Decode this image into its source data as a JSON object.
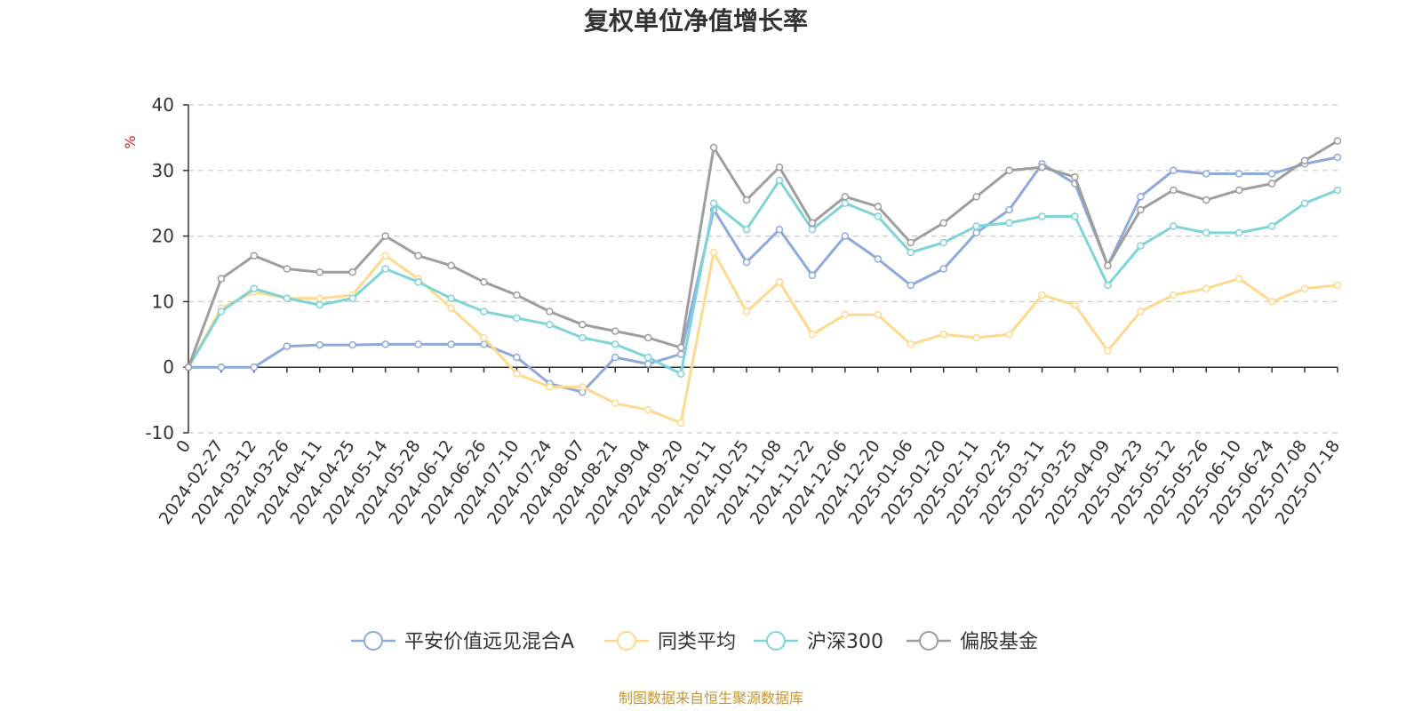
{
  "chart_data": {
    "type": "line",
    "title": "复权单位净值增长率",
    "ylabel": "%",
    "ylim": [
      -10,
      40
    ],
    "yticks": [
      -10,
      0,
      10,
      20,
      30,
      40
    ],
    "grid": true,
    "legend_position": "bottom",
    "x_tick_labels": [
      "0",
      "2024-02-27",
      "2024-03-12",
      "2024-03-26",
      "2024-04-11",
      "2024-04-25",
      "2024-05-14",
      "2024-05-28",
      "2024-06-12",
      "2024-06-26",
      "2024-07-10",
      "2024-07-24",
      "2024-08-07",
      "2024-08-21",
      "2024-09-04",
      "2024-09-20",
      "2024-10-11",
      "2024-10-25",
      "2024-11-08",
      "2024-11-22",
      "2024-12-06",
      "2024-12-20",
      "2025-01-06",
      "2025-01-20",
      "2025-02-11",
      "2025-02-25",
      "2025-03-11",
      "2025-03-25",
      "2025-04-09",
      "2025-04-23",
      "2025-05-12",
      "2025-05-26",
      "2025-06-10",
      "2025-06-24",
      "2025-07-08",
      "2025-07-18"
    ],
    "series": [
      {
        "name": "平安价值远见混合A",
        "color": "#8eaadb",
        "values": [
          0,
          0,
          0,
          3.2,
          3.4,
          3.4,
          3.5,
          3.5,
          3.5,
          3.5,
          1.5,
          -2.5,
          -3.8,
          1.5,
          0.5,
          2.0,
          24.0,
          16.0,
          21.0,
          14.0,
          20.0,
          16.5,
          12.5,
          15.0,
          20.5,
          24.0,
          31.0,
          28.0,
          15.5,
          26.0,
          30.0,
          29.5,
          29.5,
          29.5,
          31.0,
          32.0
        ]
      },
      {
        "name": "同类平均",
        "color": "#ffd98e",
        "values": [
          0,
          9.0,
          11.5,
          10.5,
          10.5,
          11.0,
          17.0,
          13.5,
          9.0,
          4.5,
          -1.0,
          -3.0,
          -3.0,
          -5.5,
          -6.5,
          -8.5,
          17.5,
          8.5,
          13.0,
          5.0,
          8.0,
          8.0,
          3.5,
          5.0,
          4.5,
          5.0,
          11.0,
          9.5,
          2.5,
          8.5,
          11.0,
          12.0,
          13.5,
          10.0,
          12.0,
          12.5
        ]
      },
      {
        "name": "沪深300",
        "color": "#7fd4d9",
        "values": [
          0,
          8.5,
          12.0,
          10.5,
          9.5,
          10.5,
          15.0,
          13.0,
          10.5,
          8.5,
          7.5,
          6.5,
          4.5,
          3.5,
          1.5,
          -1.0,
          25.0,
          21.0,
          28.5,
          21.0,
          25.0,
          23.0,
          17.5,
          19.0,
          21.5,
          22.0,
          23.0,
          23.0,
          12.5,
          18.5,
          21.5,
          20.5,
          20.5,
          21.5,
          25.0,
          27.0
        ]
      },
      {
        "name": "偏股基金",
        "color": "#9e9e9e",
        "values": [
          0,
          13.5,
          17.0,
          15.0,
          14.5,
          14.5,
          20.0,
          17.0,
          15.5,
          13.0,
          11.0,
          8.5,
          6.5,
          5.5,
          4.5,
          3.0,
          33.5,
          25.5,
          30.5,
          22.0,
          26.0,
          24.5,
          19.0,
          22.0,
          26.0,
          30.0,
          30.5,
          29.0,
          15.5,
          24.0,
          27.0,
          25.5,
          27.0,
          28.0,
          31.5,
          34.5
        ]
      }
    ]
  },
  "source_note": "制图数据来自恒生聚源数据库",
  "colors": {
    "axis": "#333333",
    "grid": "#cccccc",
    "unit": "#e02020",
    "source": "#c8962d"
  }
}
